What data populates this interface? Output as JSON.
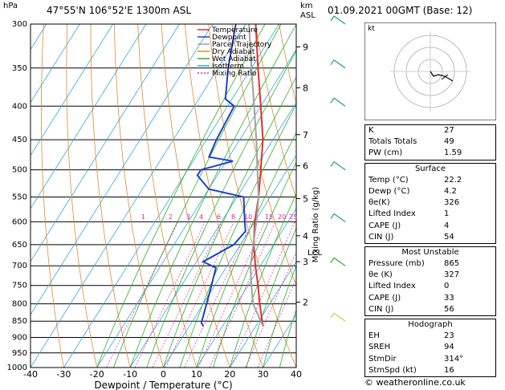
{
  "header": {
    "location": "47°55'N  106°52'E  1300m  ASL",
    "datetime": "01.09.2021  00GMT  (Base: 12)",
    "hpa_label": "hPa",
    "km_label": "km",
    "asl_label": "ASL"
  },
  "legend": [
    {
      "name": "Temperature",
      "color": "#e03030",
      "dash": ""
    },
    {
      "name": "Dewpoint",
      "color": "#2040d0",
      "dash": ""
    },
    {
      "name": "Parcel Trajectory",
      "color": "#a0a0a0",
      "dash": ""
    },
    {
      "name": "Dry Adiabat",
      "color": "#e08a2a",
      "dash": ""
    },
    {
      "name": "Wet Adiabat",
      "color": "#2ab02a",
      "dash": ""
    },
    {
      "name": "Isotherm",
      "color": "#30a8e0",
      "dash": ""
    },
    {
      "name": "Mixing Ratio",
      "color": "#e020a0",
      "dash": "2,2"
    }
  ],
  "chart_data": {
    "type": "line",
    "xlabel": "Dewpoint / Temperature (°C)",
    "ylabel": "hPa",
    "xlim": [
      -40,
      40
    ],
    "ylim": [
      1000,
      300
    ],
    "pressure_levels": [
      300,
      350,
      400,
      450,
      500,
      550,
      600,
      650,
      700,
      750,
      800,
      850,
      900,
      950,
      1000
    ],
    "temperature_ticks": [
      -40,
      -30,
      -20,
      -10,
      0,
      10,
      20,
      30,
      40
    ],
    "km_ticks": [
      {
        "p": 325,
        "km": "9"
      },
      {
        "p": 375,
        "km": "8"
      },
      {
        "p": 442,
        "km": "7"
      },
      {
        "p": 493,
        "km": "6"
      },
      {
        "p": 553,
        "km": "5"
      },
      {
        "p": 630,
        "km": "4"
      },
      {
        "p": 690,
        "km": "3"
      },
      {
        "p": 795,
        "km": "2"
      }
    ],
    "lcl": {
      "p": 667,
      "label": "LCL"
    },
    "mixing_ratio_label": "Mixing Ratio (g/kg)",
    "mixing_ratio_values": [
      "1",
      "2",
      "3",
      "4",
      "6",
      "8",
      "10",
      "15",
      "20",
      "25"
    ],
    "series": [
      {
        "name": "Temperature",
        "color": "#e03030",
        "points": [
          [
            865,
            22.2
          ],
          [
            850,
            21
          ],
          [
            800,
            17
          ],
          [
            750,
            13
          ],
          [
            700,
            8.5
          ],
          [
            650,
            4
          ],
          [
            600,
            0
          ],
          [
            550,
            -3.5
          ],
          [
            500,
            -8
          ],
          [
            450,
            -13
          ],
          [
            400,
            -20
          ],
          [
            350,
            -28
          ],
          [
            300,
            -37
          ]
        ]
      },
      {
        "name": "Dewpoint",
        "color": "#2040d0",
        "points": [
          [
            865,
            4.2
          ],
          [
            855,
            3
          ],
          [
            800,
            1
          ],
          [
            750,
            -1
          ],
          [
            705,
            -3
          ],
          [
            690,
            -8
          ],
          [
            650,
            -2
          ],
          [
            620,
            -1
          ],
          [
            600,
            -3
          ],
          [
            550,
            -8
          ],
          [
            535,
            -20
          ],
          [
            510,
            -26
          ],
          [
            500,
            -26
          ],
          [
            485,
            -18
          ],
          [
            478,
            -26
          ],
          [
            450,
            -27
          ],
          [
            400,
            -28
          ],
          [
            390,
            -32
          ],
          [
            350,
            -37
          ],
          [
            300,
            -43
          ]
        ]
      },
      {
        "name": "Parcel Trajectory",
        "color": "#a0a0a0",
        "points": [
          [
            865,
            22.2
          ],
          [
            800,
            15
          ],
          [
            750,
            11
          ],
          [
            700,
            7
          ],
          [
            667,
            5
          ],
          [
            600,
            0.5
          ],
          [
            550,
            -3.5
          ],
          [
            500,
            -9
          ],
          [
            450,
            -15
          ],
          [
            400,
            -22
          ],
          [
            350,
            -30
          ],
          [
            300,
            -39
          ]
        ]
      }
    ],
    "wind_barbs": [
      {
        "p": 300
      },
      {
        "p": 350
      },
      {
        "p": 400
      },
      {
        "p": 500
      },
      {
        "p": 600
      },
      {
        "p": 700
      },
      {
        "p": 850
      }
    ]
  },
  "hodograph": {
    "label": "kt",
    "rings": [
      "10",
      "20",
      "30",
      "40"
    ]
  },
  "indices": {
    "box1": [
      {
        "k": "K",
        "v": "27"
      },
      {
        "k": "Totals Totals",
        "v": "49"
      },
      {
        "k": "PW (cm)",
        "v": "1.59"
      }
    ],
    "surface": {
      "title": "Surface",
      "rows": [
        {
          "k": "Temp (°C)",
          "v": "22.2"
        },
        {
          "k": "Dewp (°C)",
          "v": "4.2"
        },
        {
          "k": "θe(K)",
          "v": "326"
        },
        {
          "k": "Lifted Index",
          "v": "1"
        },
        {
          "k": "CAPE (J)",
          "v": "4"
        },
        {
          "k": "CIN (J)",
          "v": "54"
        }
      ]
    },
    "unstable": {
      "title": "Most Unstable",
      "rows": [
        {
          "k": "Pressure (mb)",
          "v": "865"
        },
        {
          "k": "θe (K)",
          "v": "327"
        },
        {
          "k": "Lifted Index",
          "v": "0"
        },
        {
          "k": "CAPE (J)",
          "v": "33"
        },
        {
          "k": "CIN (J)",
          "v": "56"
        }
      ]
    },
    "hodograph": {
      "title": "Hodograph",
      "rows": [
        {
          "k": "EH",
          "v": "23"
        },
        {
          "k": "SREH",
          "v": "94"
        },
        {
          "k": "StmDir",
          "v": "314°"
        },
        {
          "k": "StmSpd (kt)",
          "v": "16"
        }
      ]
    }
  },
  "credit": "© weatheronline.co.uk"
}
